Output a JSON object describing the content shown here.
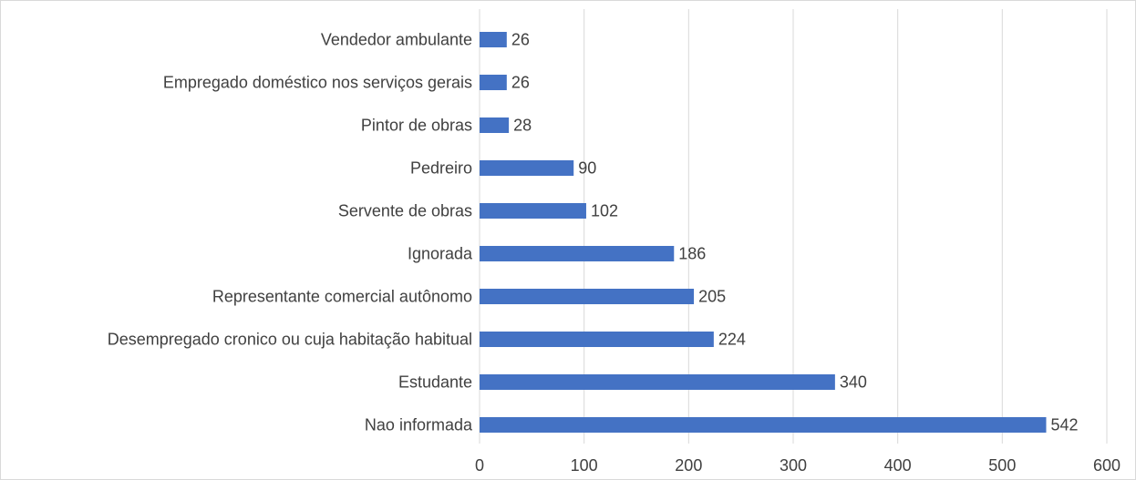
{
  "chart_data": {
    "type": "bar",
    "orientation": "horizontal",
    "categories": [
      "Vendedor ambulante",
      "Empregado doméstico nos serviços gerais",
      "Pintor de obras",
      "Pedreiro",
      "Servente de obras",
      "Ignorada",
      "Representante comercial autônomo",
      "Desempregado cronico ou cuja habitação habitual",
      "Estudante",
      "Nao informada"
    ],
    "values": [
      26,
      26,
      28,
      90,
      102,
      186,
      205,
      224,
      340,
      542
    ],
    "color": "#4472c4",
    "xlim": [
      0,
      600
    ],
    "xticks": [
      0,
      100,
      200,
      300,
      400,
      500,
      600
    ],
    "grid": true
  }
}
